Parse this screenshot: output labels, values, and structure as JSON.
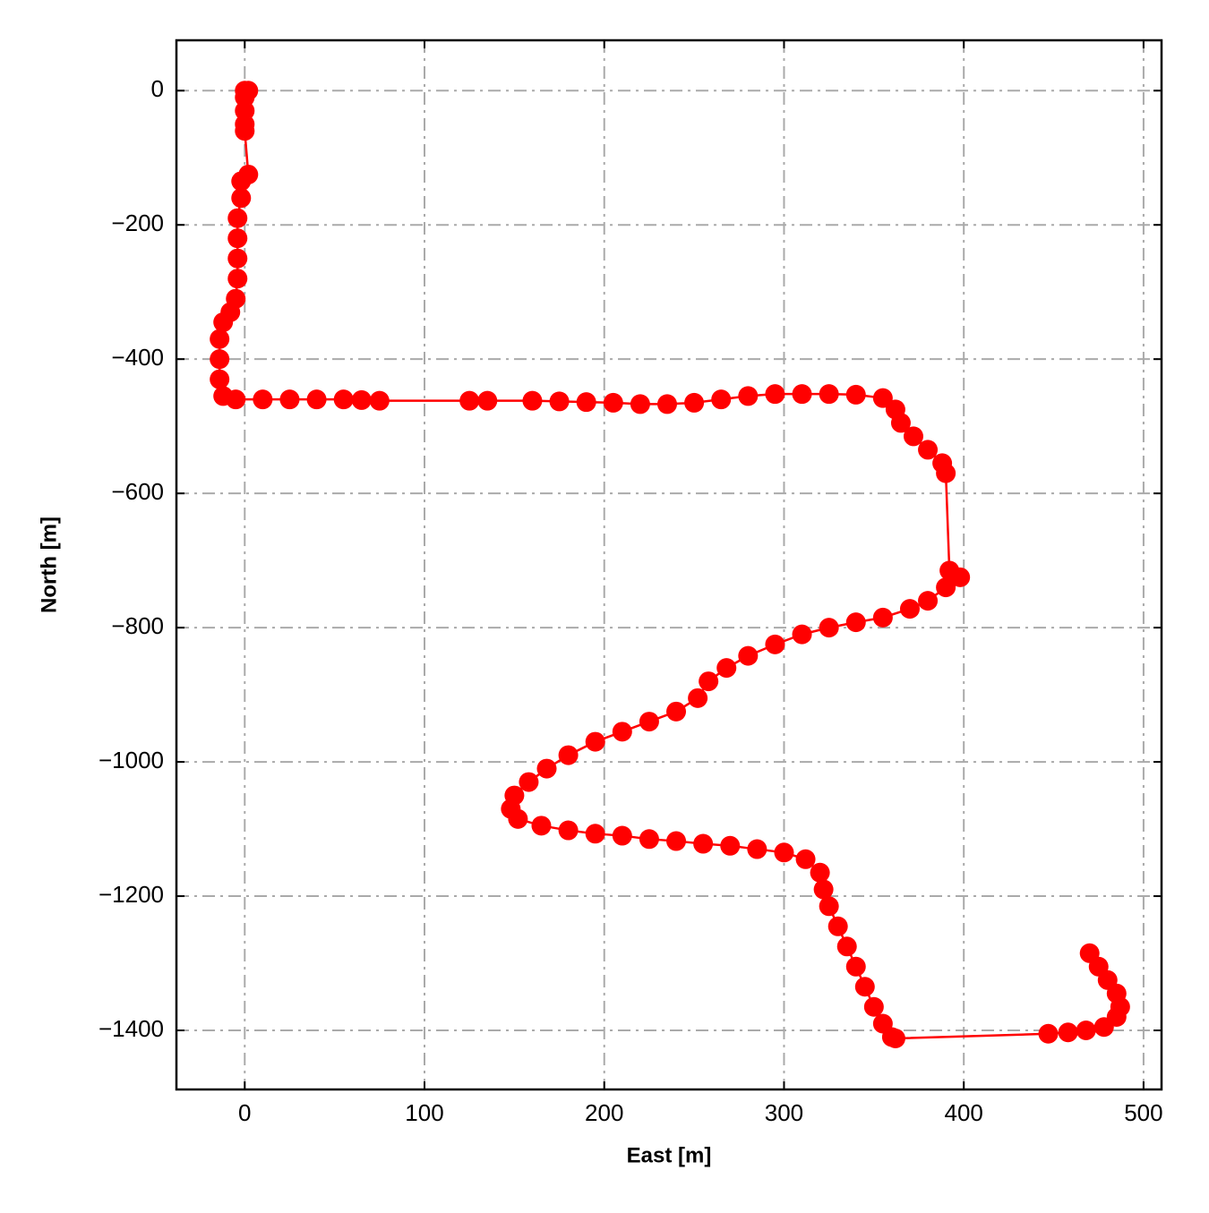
{
  "chart_data": {
    "type": "line",
    "xlabel": "East [m]",
    "ylabel": "North [m]",
    "x": [
      0,
      2,
      0,
      0,
      0,
      0,
      2,
      -2,
      -2,
      -4,
      -4,
      -4,
      -4,
      -5,
      -8,
      -12,
      -14,
      -14,
      -14,
      -12,
      -5,
      10,
      25,
      40,
      55,
      65,
      75,
      125,
      135,
      160,
      175,
      190,
      205,
      220,
      235,
      250,
      265,
      280,
      295,
      310,
      325,
      340,
      355,
      362,
      365,
      372,
      380,
      388,
      390,
      392,
      398,
      390,
      380,
      370,
      355,
      340,
      325,
      310,
      295,
      280,
      268,
      258,
      252,
      240,
      225,
      210,
      195,
      180,
      168,
      158,
      150,
      148,
      152,
      165,
      180,
      195,
      210,
      225,
      240,
      255,
      270,
      285,
      300,
      312,
      320,
      322,
      325,
      330,
      335,
      340,
      345,
      350,
      355,
      360,
      362,
      447,
      458,
      468,
      478,
      485,
      487,
      485,
      480,
      475,
      470
    ],
    "series": [
      {
        "color": "#ff0000",
        "values": [
          0,
          0,
          -10,
          -30,
          -50,
          -60,
          -125,
          -135,
          -160,
          -190,
          -220,
          -250,
          -280,
          -310,
          -330,
          -345,
          -370,
          -400,
          -430,
          -455,
          -460,
          -460,
          -460,
          -460,
          -460,
          -461,
          -462,
          -462,
          -462,
          -462,
          -463,
          -464,
          -465,
          -467,
          -467,
          -465,
          -460,
          -455,
          -452,
          -452,
          -452,
          -453,
          -458,
          -475,
          -495,
          -515,
          -535,
          -555,
          -570,
          -715,
          -725,
          -740,
          -760,
          -772,
          -785,
          -792,
          -800,
          -810,
          -825,
          -842,
          -860,
          -880,
          -905,
          -925,
          -940,
          -955,
          -970,
          -990,
          -1010,
          -1030,
          -1050,
          -1070,
          -1085,
          -1095,
          -1102,
          -1107,
          -1110,
          -1115,
          -1118,
          -1122,
          -1125,
          -1130,
          -1135,
          -1145,
          -1165,
          -1190,
          -1215,
          -1245,
          -1275,
          -1305,
          -1335,
          -1365,
          -1390,
          -1410,
          -1412,
          -1405,
          -1403,
          -1400,
          -1395,
          -1380,
          -1365,
          -1345,
          -1325,
          -1305,
          -1285
        ]
      }
    ],
    "xlim": [
      -38,
      510
    ],
    "ylim": [
      -1488,
      75
    ],
    "xticks": [
      0,
      100,
      200,
      300,
      400,
      500
    ],
    "yticks": [
      0,
      {
        "value": -200,
        "label": "−200"
      },
      {
        "value": -400,
        "label": "−400"
      },
      {
        "value": -600,
        "label": "−600"
      },
      {
        "value": -800,
        "label": "−800"
      },
      {
        "value": -1000,
        "label": "−1000"
      },
      {
        "value": -1200,
        "label": "−1200"
      },
      {
        "value": -1400,
        "label": "−1400"
      }
    ],
    "grid": true
  }
}
